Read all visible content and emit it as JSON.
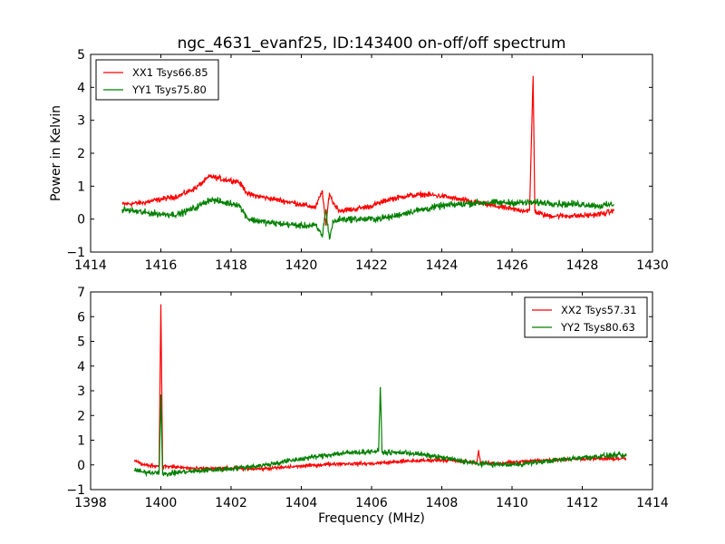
{
  "chart_data": [
    {
      "type": "line",
      "title": "ngc_4631_evanf25, ID:143400 on-off/off spectrum",
      "xlabel": "",
      "ylabel": "Power in Kelvin",
      "xlim": [
        1414,
        1430
      ],
      "ylim": [
        -1,
        5
      ],
      "xticks": [
        1414,
        1416,
        1418,
        1420,
        1422,
        1424,
        1426,
        1428,
        1430
      ],
      "yticks": [
        -1,
        0,
        1,
        2,
        3,
        4,
        5
      ],
      "xtick_labels": [
        "1414",
        "1416",
        "1418",
        "1420",
        "1422",
        "1424",
        "1426",
        "1428",
        "1430"
      ],
      "ytick_labels": [
        "−1",
        "0",
        "1",
        "2",
        "3",
        "4",
        "5"
      ],
      "legend_position": "top-left",
      "grid": false,
      "series": [
        {
          "name": "XX1 Tsys66.85",
          "color": "#ff0000",
          "noise": 0.08,
          "x": [
            1414.9,
            1415.5,
            1416.0,
            1416.5,
            1417.0,
            1417.4,
            1417.8,
            1418.2,
            1418.5,
            1419.0,
            1419.5,
            1420.0,
            1420.4,
            1420.6,
            1420.7,
            1420.8,
            1420.9,
            1421.1,
            1421.5,
            1422.0,
            1422.5,
            1423.0,
            1423.5,
            1424.0,
            1424.5,
            1425.0,
            1425.5,
            1426.0,
            1426.5,
            1426.6,
            1426.65,
            1426.7,
            1427.0,
            1427.5,
            1428.0,
            1428.5,
            1428.9
          ],
          "y": [
            0.45,
            0.5,
            0.6,
            0.7,
            0.95,
            1.3,
            1.2,
            1.15,
            0.75,
            0.65,
            0.55,
            0.45,
            0.35,
            0.85,
            -0.2,
            0.8,
            0.5,
            0.25,
            0.3,
            0.4,
            0.6,
            0.7,
            0.75,
            0.7,
            0.6,
            0.5,
            0.4,
            0.3,
            0.25,
            4.35,
            0.25,
            0.2,
            0.1,
            0.1,
            0.1,
            0.15,
            0.25
          ]
        },
        {
          "name": "YY1 Tsys75.80",
          "color": "#008000",
          "noise": 0.1,
          "x": [
            1414.9,
            1415.5,
            1416.0,
            1416.5,
            1417.0,
            1417.4,
            1417.8,
            1418.2,
            1418.5,
            1419.0,
            1419.5,
            1420.0,
            1420.4,
            1420.6,
            1420.7,
            1420.8,
            1420.9,
            1421.1,
            1421.5,
            1422.0,
            1422.5,
            1423.0,
            1423.5,
            1424.0,
            1424.5,
            1425.0,
            1425.5,
            1426.0,
            1426.5,
            1427.0,
            1427.5,
            1428.0,
            1428.5,
            1428.9
          ],
          "y": [
            0.3,
            0.2,
            0.15,
            0.15,
            0.35,
            0.6,
            0.5,
            0.45,
            0.0,
            -0.1,
            -0.15,
            -0.2,
            -0.2,
            -0.5,
            0.3,
            -0.6,
            -0.1,
            0.0,
            0.0,
            0.0,
            0.05,
            0.2,
            0.3,
            0.4,
            0.45,
            0.5,
            0.5,
            0.5,
            0.5,
            0.5,
            0.45,
            0.45,
            0.4,
            0.45
          ]
        }
      ]
    },
    {
      "type": "line",
      "title": "",
      "xlabel": "Frequency (MHz)",
      "ylabel": "",
      "xlim": [
        1398,
        1414
      ],
      "ylim": [
        -1,
        7
      ],
      "xticks": [
        1398,
        1400,
        1402,
        1404,
        1406,
        1408,
        1410,
        1412,
        1414
      ],
      "yticks": [
        -1,
        0,
        1,
        2,
        3,
        4,
        5,
        6,
        7
      ],
      "xtick_labels": [
        "1398",
        "1400",
        "1402",
        "1404",
        "1406",
        "1408",
        "1410",
        "1412",
        "1414"
      ],
      "ytick_labels": [
        "−1",
        "0",
        "1",
        "2",
        "3",
        "4",
        "5",
        "6",
        "7"
      ],
      "legend_position": "top-right",
      "grid": false,
      "series": [
        {
          "name": "XX2 Tsys57.31",
          "color": "#ff0000",
          "noise": 0.07,
          "x": [
            1399.25,
            1399.5,
            1399.95,
            1400.0,
            1400.05,
            1400.5,
            1401.0,
            1402.0,
            1403.0,
            1404.0,
            1405.0,
            1406.0,
            1407.0,
            1408.0,
            1409.0,
            1409.05,
            1409.1,
            1409.5,
            1410.0,
            1411.0,
            1412.0,
            1413.0,
            1413.25
          ],
          "y": [
            0.2,
            0.0,
            -0.05,
            6.5,
            -0.05,
            -0.1,
            -0.15,
            -0.15,
            -0.15,
            -0.05,
            0.05,
            0.05,
            0.15,
            0.2,
            0.1,
            0.6,
            0.1,
            0.05,
            0.1,
            0.2,
            0.25,
            0.25,
            0.25
          ]
        },
        {
          "name": "YY2 Tsys80.63",
          "color": "#008000",
          "noise": 0.1,
          "x": [
            1399.25,
            1399.5,
            1399.95,
            1400.0,
            1400.05,
            1400.5,
            1401.0,
            1402.0,
            1403.0,
            1404.0,
            1405.0,
            1406.0,
            1406.2,
            1406.25,
            1406.3,
            1407.0,
            1408.0,
            1409.0,
            1410.0,
            1411.0,
            1412.0,
            1413.0,
            1413.25
          ],
          "y": [
            -0.2,
            -0.3,
            -0.3,
            2.85,
            -0.4,
            -0.3,
            -0.25,
            -0.15,
            0.0,
            0.25,
            0.45,
            0.55,
            0.55,
            3.15,
            0.5,
            0.5,
            0.3,
            0.05,
            0.0,
            0.15,
            0.3,
            0.4,
            0.35
          ]
        }
      ]
    }
  ]
}
